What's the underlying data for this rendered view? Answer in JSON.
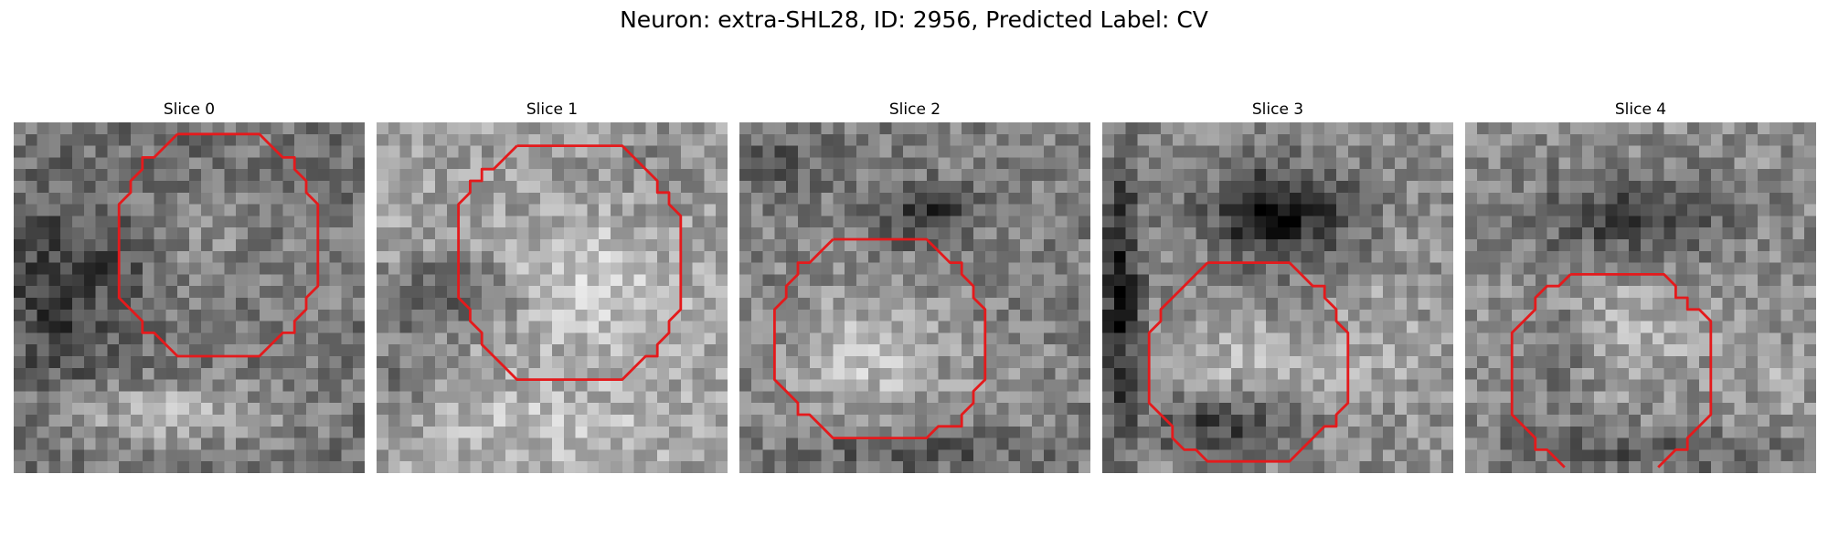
{
  "figure": {
    "title": "Neuron: extra-SHL28, ID: 2956, Predicted Label: CV"
  },
  "slices": [
    {
      "title": "Slice 0"
    },
    {
      "title": "Slice 1"
    },
    {
      "title": "Slice 2"
    },
    {
      "title": "Slice 3"
    },
    {
      "title": "Slice 4"
    }
  ],
  "colors": {
    "contour": "#e41a1c",
    "colormap": "grayscale"
  }
}
